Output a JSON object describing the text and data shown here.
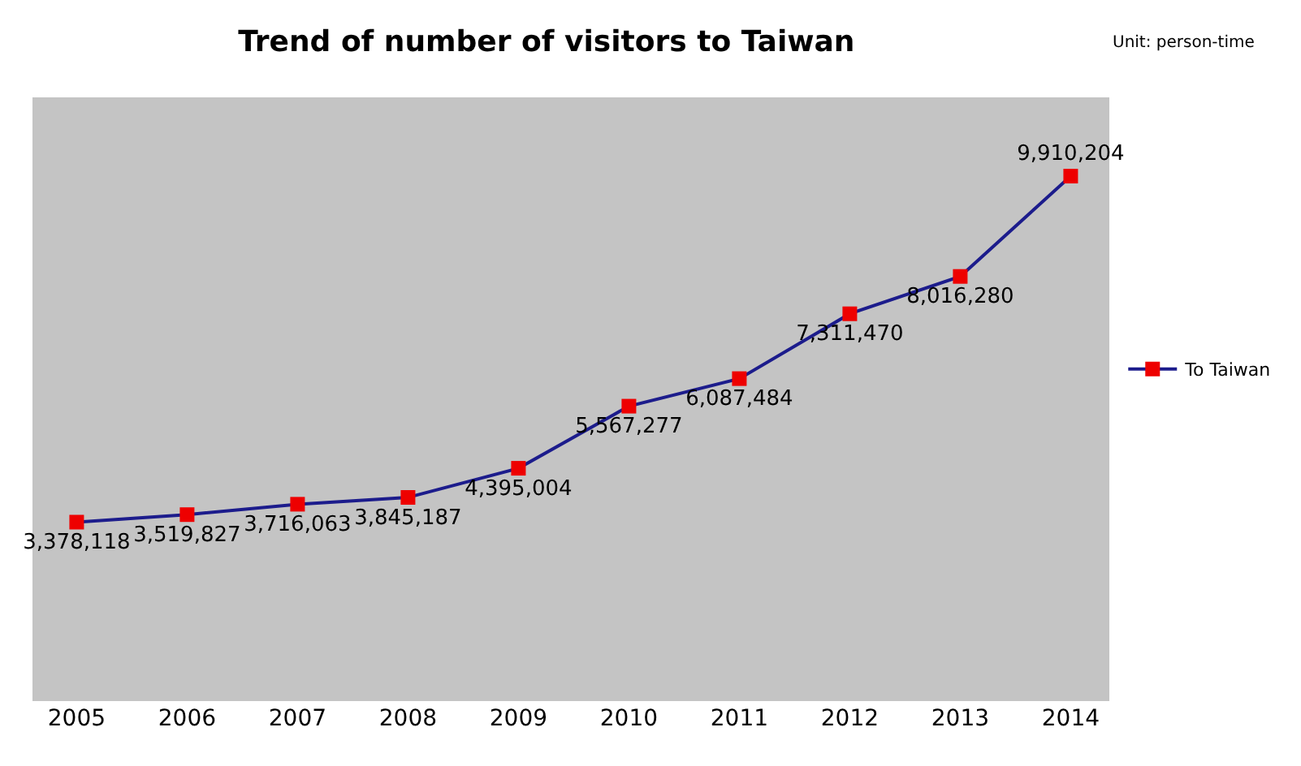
{
  "chart_data": {
    "type": "line",
    "title": "Trend of number of visitors to Taiwan",
    "annotations": [
      "Unit: person-time"
    ],
    "categories": [
      "2005",
      "2006",
      "2007",
      "2008",
      "2009",
      "2010",
      "2011",
      "2012",
      "2013",
      "2014"
    ],
    "series": [
      {
        "name": "To Taiwan",
        "color": "#1c1c8c",
        "colors": [
          "#ee0000",
          "#ee0000",
          "#ee0000",
          "#ee0000",
          "#ee0000",
          "#ee0000",
          "#ee0000",
          "#ee0000",
          "#ee0000",
          "#ee0000"
        ],
        "values": [
          3378118,
          3519827,
          3716063,
          3845187,
          4395004,
          5567277,
          6087484,
          7311470,
          8016280,
          9910204
        ],
        "value_labels": [
          "3,378,118",
          "3,519,827",
          "3,716,063",
          "3,845,187",
          "4,395,004",
          "5,567,277",
          "6,087,484",
          "7,311,470",
          "8,016,280",
          "9,910,204"
        ]
      }
    ],
    "marker": "square",
    "legend": "right",
    "grid": false
  }
}
